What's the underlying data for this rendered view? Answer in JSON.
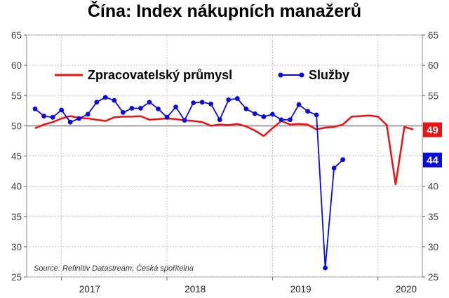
{
  "chart_data": {
    "type": "line",
    "title": "Čína: Index nákupních manažerů",
    "source": "Source: Refinitiv Datastream, Česká spořitelna",
    "ylim": [
      25,
      65
    ],
    "y_ticks": [
      25,
      30,
      35,
      40,
      45,
      50,
      55,
      60,
      65
    ],
    "reference_line": 50,
    "x_range": [
      2016.67,
      2020.42
    ],
    "x_tick_labels": [
      "2017",
      "2018",
      "2019",
      "2020"
    ],
    "x_tick_positions": [
      2017.0,
      2018.0,
      2019.0,
      2020.0
    ],
    "legend_position": "top-left",
    "grid": true,
    "series": [
      {
        "name": "Zpracovatelský průmysl",
        "color": "#ee1111",
        "marker": false,
        "x_start": 2016.75,
        "x_step": 0.08333,
        "values": [
          49.6,
          50.2,
          50.6,
          51.2,
          51.6,
          51.3,
          51.2,
          51.0,
          50.8,
          51.4,
          51.5,
          51.5,
          51.6,
          51.0,
          51.1,
          51.2,
          51.1,
          50.9,
          50.8,
          50.6,
          50.0,
          50.2,
          50.1,
          50.3,
          49.9,
          49.2,
          48.3,
          49.6,
          50.8,
          50.2,
          50.3,
          50.2,
          49.4,
          49.7,
          49.8,
          50.2,
          51.5,
          51.6,
          51.7,
          51.5,
          50.1,
          40.3,
          49.8,
          49.4
        ]
      },
      {
        "name": "Služby",
        "color": "#0a0adc",
        "marker": true,
        "x_start": 2016.75,
        "x_step": 0.08333,
        "values": [
          52.8,
          51.6,
          51.4,
          52.6,
          50.6,
          51.2,
          51.9,
          53.9,
          54.7,
          54.2,
          52.2,
          52.9,
          52.9,
          53.9,
          52.8,
          51.4,
          53.1,
          50.9,
          53.8,
          53.9,
          53.6,
          51.0,
          54.3,
          54.5,
          52.8,
          52.0,
          51.5,
          51.9,
          51.0,
          51.0,
          53.5,
          52.4,
          51.8,
          26.5,
          43.0,
          44.4
        ]
      }
    ],
    "last_value_badges": [
      {
        "label": "49",
        "color": "#ee1111",
        "y": 49.4
      },
      {
        "label": "44",
        "color": "#0a0adc",
        "y": 44.4
      }
    ]
  }
}
